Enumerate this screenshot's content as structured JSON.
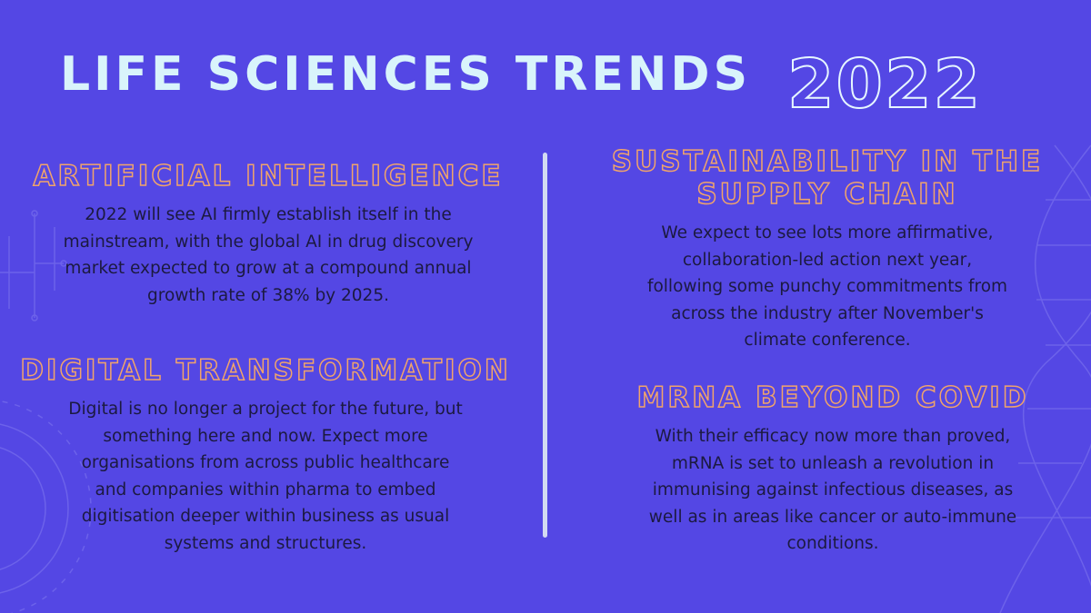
{
  "title": "LIFE SCIENCES TRENDS",
  "year": "2022",
  "sections": [
    {
      "heading": [
        "ARTIFICIAL INTELLIGENCE"
      ],
      "body": [
        "2022 will see AI firmly establish itself in the",
        "mainstream, with the global AI in drug discovery",
        "market expected to grow at a compound annual",
        "growth rate of 38% by 2025."
      ]
    },
    {
      "heading": [
        "DIGITAL TRANSFORMATION"
      ],
      "body": [
        "Digital is no longer a project for the future, but",
        "something here and now. Expect more",
        "organisations from across public healthcare",
        "and companies within pharma to embed",
        "digitisation deeper within business as usual",
        "systems and structures."
      ]
    },
    {
      "heading": [
        "SUSTAINABILITY IN THE",
        "SUPPLY CHAIN"
      ],
      "body": [
        "We expect to see lots more affirmative,",
        "collaboration-led action next year,",
        "following some punchy commitments from",
        "across the industry after November's",
        "climate conference."
      ]
    },
    {
      "heading": [
        "MRNA BEYOND COVID"
      ],
      "body": [
        "With their efficacy now more than proved,",
        "mRNA is set to unleash a revolution in",
        "immunising against infectious diseases, as",
        "well as in areas like cancer or auto-immune",
        "conditions."
      ]
    }
  ]
}
